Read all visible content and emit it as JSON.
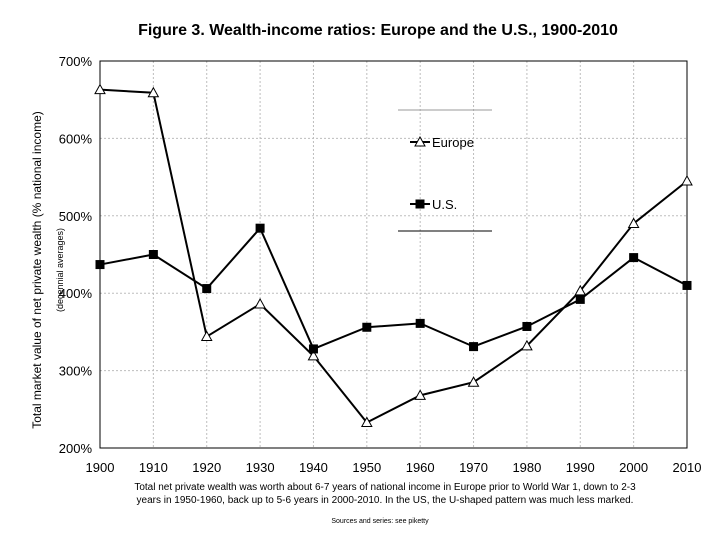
{
  "chart_data": {
    "type": "line",
    "title": "Figure 3. Wealth-income ratios: Europe and the U.S., 1900-2010",
    "ylabel": "Total market value of net private wealth (% national income)",
    "ylabel_sub": "(decennial averages)",
    "xlabel": "",
    "x": [
      1900,
      1910,
      1920,
      1930,
      1940,
      1950,
      1960,
      1970,
      1980,
      1990,
      2000,
      2010
    ],
    "x_tick_labels": [
      "1900",
      "1910",
      "1920",
      "1930",
      "1940",
      "1950",
      "1960",
      "1970",
      "1980",
      "1990",
      "2000",
      "2010"
    ],
    "y_tick_values": [
      200,
      300,
      400,
      500,
      600,
      700
    ],
    "y_tick_labels": [
      "200%",
      "300%",
      "400%",
      "500%",
      "600%",
      "700%"
    ],
    "ylim": [
      200,
      700
    ],
    "grid": true,
    "legend_position": "upper-right",
    "series": [
      {
        "name": "Europe",
        "marker": "triangle-open",
        "color": "#000000",
        "values": [
          663,
          659,
          344,
          386,
          319,
          233,
          268,
          285,
          332,
          403,
          490,
          545
        ]
      },
      {
        "name": "U.S.",
        "marker": "square-filled",
        "color": "#000000",
        "values": [
          437,
          450,
          406,
          484,
          328,
          356,
          361,
          331,
          357,
          392,
          446,
          410
        ]
      }
    ],
    "note": "Total net private wealth was worth about 6-7 years of national income in Europe prior to World War 1, down to 2-3 years in 1950-1960, back up to 5-6 years in 2000-2010. In the US, the U-shaped pattern was much less marked.",
    "note_lines": [
      "Total net private wealth was worth about 6-7 years of national income in Europe prior to World War 1, down to 2-3",
      "years in 1950-1960, back up to 5-6 years in 2000-2010. In the US, the U-shaped pattern was much less marked."
    ],
    "source": "Sources and series: see piketty"
  }
}
